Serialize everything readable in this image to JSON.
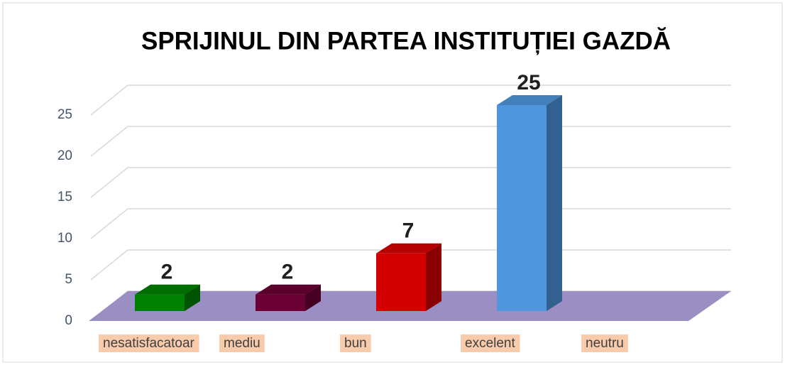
{
  "chart_data": {
    "type": "bar",
    "title": "SPRIJINUL DIN PARTEA INSTITUȚIEI GAZDĂ",
    "categories": [
      "nesatisfacatoar",
      "mediu",
      "bun",
      "excelent",
      "neutru"
    ],
    "values": [
      2,
      2,
      7,
      25,
      null
    ],
    "colors": [
      "#008000",
      "#6a0033",
      "#d40000",
      "#4f96dc",
      null
    ],
    "ylim": [
      0,
      25
    ],
    "yticks": [
      0,
      5,
      10,
      15,
      20,
      25
    ],
    "grid": true,
    "floor_color": "#9a8ec2"
  }
}
